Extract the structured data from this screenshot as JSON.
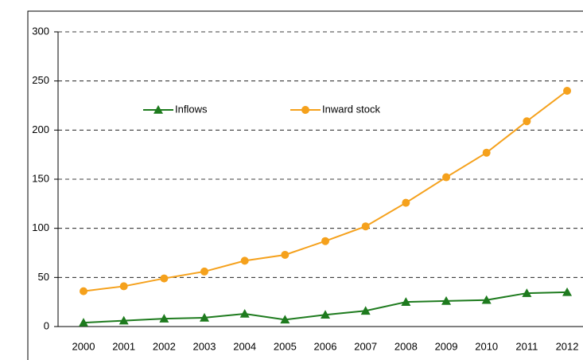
{
  "chart_data": {
    "type": "line",
    "categories": [
      "2000",
      "2001",
      "2002",
      "2003",
      "2004",
      "2005",
      "2006",
      "2007",
      "2008",
      "2009",
      "2010",
      "2011",
      "2012"
    ],
    "series": [
      {
        "name": "Inflows",
        "color": "#1e7b1e",
        "marker": "triangle",
        "values": [
          4,
          6,
          8,
          9,
          13,
          7,
          12,
          16,
          25,
          26,
          27,
          34,
          35
        ]
      },
      {
        "name": "Inward stock",
        "color": "#f5a11c",
        "marker": "circle",
        "values": [
          36,
          41,
          49,
          56,
          67,
          73,
          87,
          102,
          126,
          152,
          177,
          209,
          240
        ]
      }
    ],
    "ylim": [
      0,
      300
    ],
    "yticks": [
      0,
      50,
      100,
      150,
      200,
      250,
      300
    ],
    "grid": true
  }
}
